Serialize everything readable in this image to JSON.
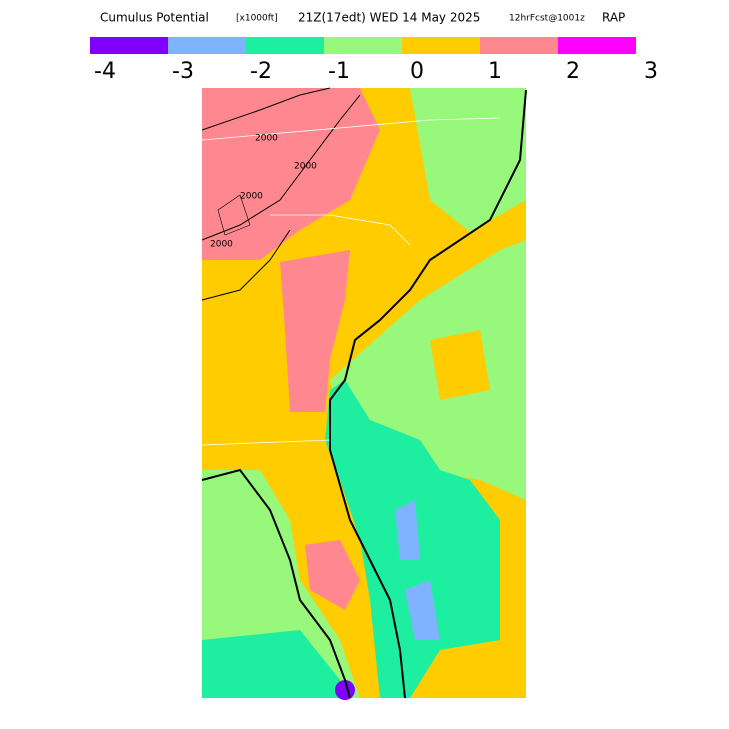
{
  "title": {
    "name": "Cumulus Potential",
    "unit": "[x1000ft]",
    "valid": "21Z(17edt) WED 14 May 2025",
    "forecast": "12hrFcst@1001z",
    "model": "RAP"
  },
  "colorbar": {
    "colors": [
      "#7f00ff",
      "#80b3ff",
      "#1eeea0",
      "#98f87c",
      "#ffcc00",
      "#ff8890",
      "#ff00ff"
    ],
    "labels": [
      -4,
      -3,
      -2,
      -1,
      0,
      1,
      2,
      3
    ]
  },
  "contour_labels": [
    "2000",
    "2000",
    "2000",
    "2000"
  ]
}
